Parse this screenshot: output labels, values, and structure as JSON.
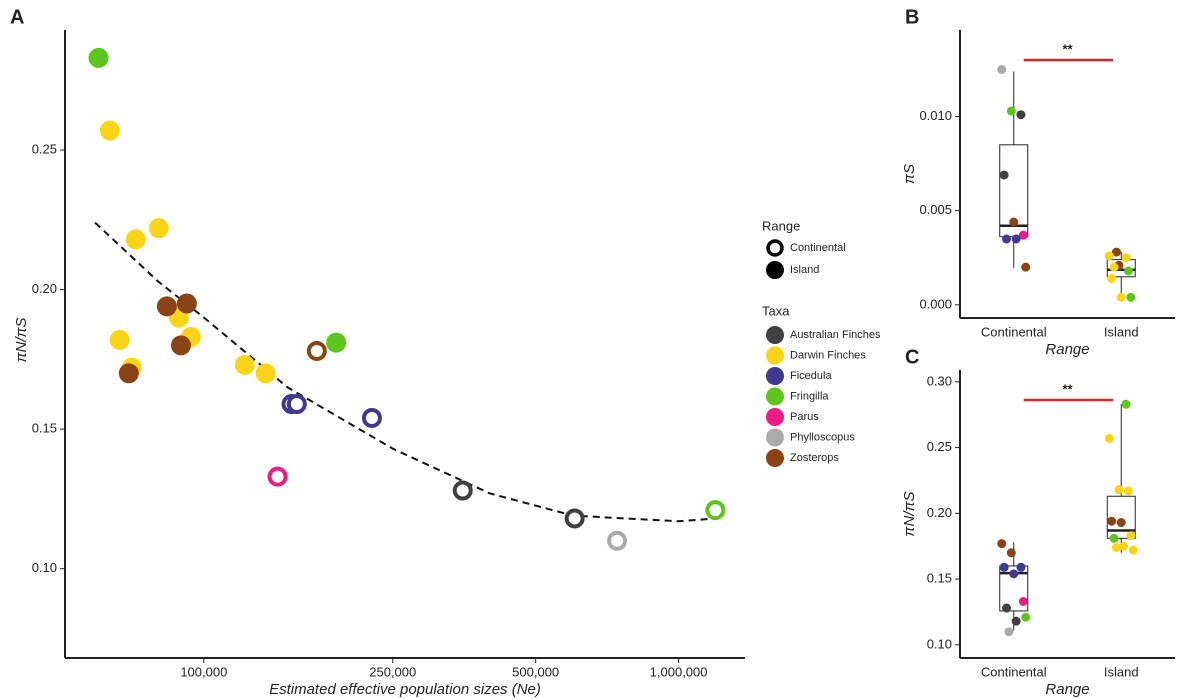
{
  "chart_data": [
    {
      "type": "scatter",
      "panel": "A",
      "x_label": "Estimated effective population sizes (Ne)",
      "y_label": "πN/πS",
      "log_x": true,
      "xlim": [
        51000,
        1380000
      ],
      "ylim": [
        0.068,
        0.293
      ],
      "xticks": [
        {
          "value": 100000,
          "label": "100,000"
        },
        {
          "value": 250000,
          "label": "250,000"
        },
        {
          "value": 500000,
          "label": "500,000"
        },
        {
          "value": 1000000,
          "label": "1,000,000"
        }
      ],
      "yticks": [
        {
          "value": 0.1,
          "label": "0.10"
        },
        0.15,
        {
          "value": 0.2,
          "label": "0.20"
        },
        0.25
      ],
      "range_legend": {
        "title": "Range",
        "items": [
          "Continental",
          "Island"
        ]
      },
      "taxa_legend_title": "Taxa",
      "series": [
        {
          "name": "Australian Finches",
          "color": "#404040",
          "x": [
            351000,
            604000
          ],
          "values": [
            0.128,
            0.118
          ],
          "range": [
            "Continental",
            "Continental"
          ]
        },
        {
          "name": "Darwin Finches",
          "color": "#fbd418",
          "x": [
            63400,
            71900,
            80400,
            66500,
            70500,
            88600,
            93900,
            122000,
            135000
          ],
          "values": [
            0.257,
            0.218,
            0.222,
            0.182,
            0.172,
            0.19,
            0.183,
            0.173,
            0.17
          ],
          "range": [
            "Island",
            "Island",
            "Island",
            "Island",
            "Island",
            "Island",
            "Island",
            "Island",
            "Island"
          ]
        },
        {
          "name": "Ficedula",
          "color": "#40398f",
          "x": [
            153000,
            157000,
            226000
          ],
          "values": [
            0.159,
            0.159,
            0.154
          ],
          "range": [
            "Continental",
            "Continental",
            "Continental"
          ]
        },
        {
          "name": "Fringilla",
          "color": "#5cc61c",
          "x": [
            60000,
            190000,
            1195000
          ],
          "values": [
            0.283,
            0.181,
            0.121
          ],
          "range": [
            "Island",
            "Island",
            "Continental"
          ]
        },
        {
          "name": "Parus",
          "color": "#ee1a85",
          "x": [
            143000
          ],
          "values": [
            0.133
          ],
          "range": [
            "Continental"
          ]
        },
        {
          "name": "Phylloscopus",
          "color": "#aaaaaa",
          "x": [
            742000
          ],
          "values": [
            0.11
          ],
          "range": [
            "Continental"
          ]
        },
        {
          "name": "Zosterops",
          "color": "#8b4214",
          "x": [
            69500,
            83600,
            92100,
            89500,
            173000
          ],
          "values": [
            0.17,
            0.194,
            0.195,
            0.18,
            0.178
          ],
          "range": [
            "Island",
            "Island",
            "Island",
            "Island",
            "Continental"
          ]
        }
      ],
      "trend": {
        "x": [
          59000,
          80000,
          100000,
          150000,
          250000,
          400000,
          600000,
          1000000,
          1200000
        ],
        "values": [
          0.224,
          0.203,
          0.19,
          0.165,
          0.143,
          0.127,
          0.119,
          0.117,
          0.118
        ]
      }
    },
    {
      "type": "box",
      "panel": "B",
      "x_label": "Range",
      "y_label": "πS",
      "significance": "**",
      "categories": [
        "Continental",
        "Island"
      ],
      "ylim": [
        -0.0007,
        0.0146
      ],
      "yticks": [
        {
          "value": 0,
          "label": "0.000"
        },
        {
          "value": 0.005,
          "label": "0.005"
        },
        {
          "value": 0.01,
          "label": "0.010"
        }
      ],
      "boxes": [
        {
          "whislo": 0.00197,
          "q1": 0.00362,
          "med": 0.0042,
          "q3": 0.0085,
          "whishi": 0.0124
        },
        {
          "whislo": 0.00037,
          "q1": 0.00149,
          "med": 0.00186,
          "q3": 0.0024,
          "whishi": 0.0028
        }
      ],
      "points": {
        "category": [
          0,
          0,
          0,
          0,
          0,
          0,
          0,
          0,
          0,
          1,
          1,
          1,
          1,
          1,
          1,
          1,
          1,
          1
        ],
        "values": [
          0.0125,
          0.0103,
          0.0101,
          0.0069,
          0.0044,
          0.0037,
          0.0035,
          0.0035,
          0.002,
          0.0028,
          0.0025,
          0.0026,
          0.0021,
          0.0018,
          0.0014,
          0.0004,
          0.0004,
          0.002
        ],
        "colors": [
          "#aaaaaa",
          "#5cc61c",
          "#404040",
          "#404040",
          "#8b4214",
          "#ee1a85",
          "#40398f",
          "#40398f",
          "#8b4214",
          "#8b4214",
          "#fbd418",
          "#fbd418",
          "#8b4214",
          "#5cc61c",
          "#fbd418",
          "#fbd418",
          "#5cc61c",
          "#fbd418"
        ]
      }
    },
    {
      "type": "box",
      "panel": "C",
      "x_label": "Range",
      "y_label": "πN/πS",
      "significance": "**",
      "categories": [
        "Continental",
        "Island"
      ],
      "ylim": [
        0.09,
        0.309
      ],
      "yticks": [
        {
          "value": 0.1,
          "label": "0.10"
        },
        0.15,
        {
          "value": 0.2,
          "label": "0.20"
        },
        0.25,
        {
          "value": 0.3,
          "label": "0.30"
        }
      ],
      "boxes": [
        {
          "whislo": 0.111,
          "q1": 0.1258,
          "med": 0.1545,
          "q3": 0.16,
          "whishi": 0.178
        },
        {
          "whislo": 0.17,
          "q1": 0.181,
          "med": 0.187,
          "q3": 0.213,
          "whishi": 0.283
        }
      ],
      "points": {
        "category": [
          0,
          0,
          0,
          0,
          0,
          0,
          0,
          0,
          0,
          0,
          1,
          1,
          1,
          1,
          1,
          1,
          1,
          1,
          1,
          1,
          1
        ],
        "values": [
          0.177,
          0.17,
          0.159,
          0.159,
          0.154,
          0.133,
          0.128,
          0.118,
          0.121,
          0.11,
          0.283,
          0.257,
          0.218,
          0.217,
          0.194,
          0.193,
          0.183,
          0.181,
          0.175,
          0.172,
          0.174
        ],
        "colors": [
          "#8b4214",
          "#8b4214",
          "#40398f",
          "#40398f",
          "#40398f",
          "#ee1a85",
          "#404040",
          "#404040",
          "#5cc61c",
          "#aaaaaa",
          "#5cc61c",
          "#fbd418",
          "#fbd418",
          "#fbd418",
          "#8b4214",
          "#8b4214",
          "#fbd418",
          "#5cc61c",
          "#fbd418",
          "#fbd418",
          "#fbd418"
        ]
      }
    }
  ]
}
